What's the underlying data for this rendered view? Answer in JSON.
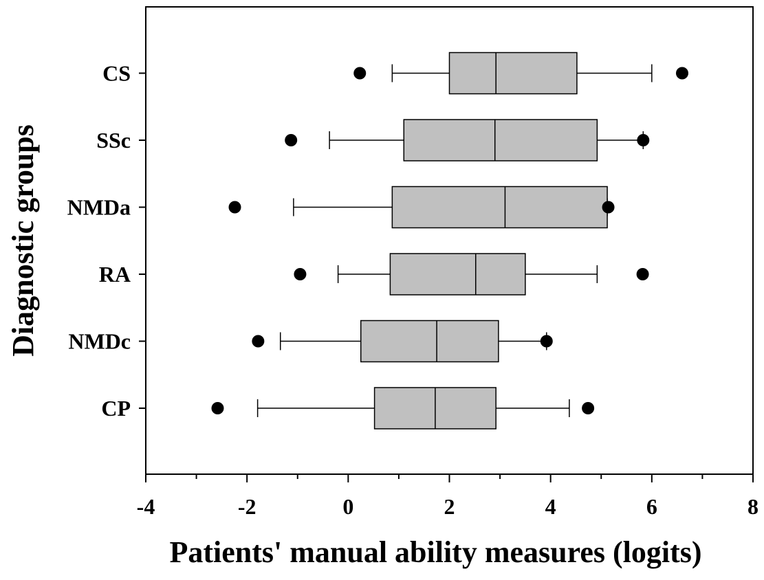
{
  "chart_data": {
    "type": "boxplot",
    "orientation": "horizontal",
    "title": "",
    "xlabel": "Patients' manual ability measures (logits)",
    "ylabel": "Diagnostic groups",
    "xlim": [
      -4,
      8
    ],
    "xticks": [
      -4,
      -2,
      0,
      2,
      4,
      6,
      8
    ],
    "xtick_labels": [
      "-4",
      "-2",
      "0",
      "2",
      "4",
      "6",
      "8"
    ],
    "grid": false,
    "box_color": "#c0c0c0",
    "categories": [
      "CS",
      "SSc",
      "NMDa",
      "RA",
      "NMDc",
      "CP"
    ],
    "groups": [
      {
        "name": "CS",
        "whisker_low": 0.87,
        "q1": 2.0,
        "median": 2.92,
        "q3": 4.52,
        "whisker_high": 6.0,
        "outliers": [
          0.23,
          6.6
        ]
      },
      {
        "name": "SSc",
        "whisker_low": -0.37,
        "q1": 1.1,
        "median": 2.9,
        "q3": 4.92,
        "whisker_high": 5.83,
        "outliers": [
          -1.13,
          5.83
        ]
      },
      {
        "name": "NMDa",
        "whisker_low": -1.08,
        "q1": 0.87,
        "median": 3.1,
        "q3": 5.12,
        "whisker_high": 5.12,
        "outliers": [
          -2.24,
          5.14
        ]
      },
      {
        "name": "RA",
        "whisker_low": -0.2,
        "q1": 0.83,
        "median": 2.52,
        "q3": 3.5,
        "whisker_high": 4.92,
        "outliers": [
          -0.95,
          5.82
        ]
      },
      {
        "name": "NMDc",
        "whisker_low": -1.34,
        "q1": 0.25,
        "median": 1.75,
        "q3": 2.97,
        "whisker_high": 3.92,
        "outliers": [
          -1.78,
          3.92
        ]
      },
      {
        "name": "CP",
        "whisker_low": -1.79,
        "q1": 0.52,
        "median": 1.72,
        "q3": 2.92,
        "whisker_high": 4.37,
        "outliers": [
          -2.58,
          4.74
        ]
      }
    ]
  }
}
